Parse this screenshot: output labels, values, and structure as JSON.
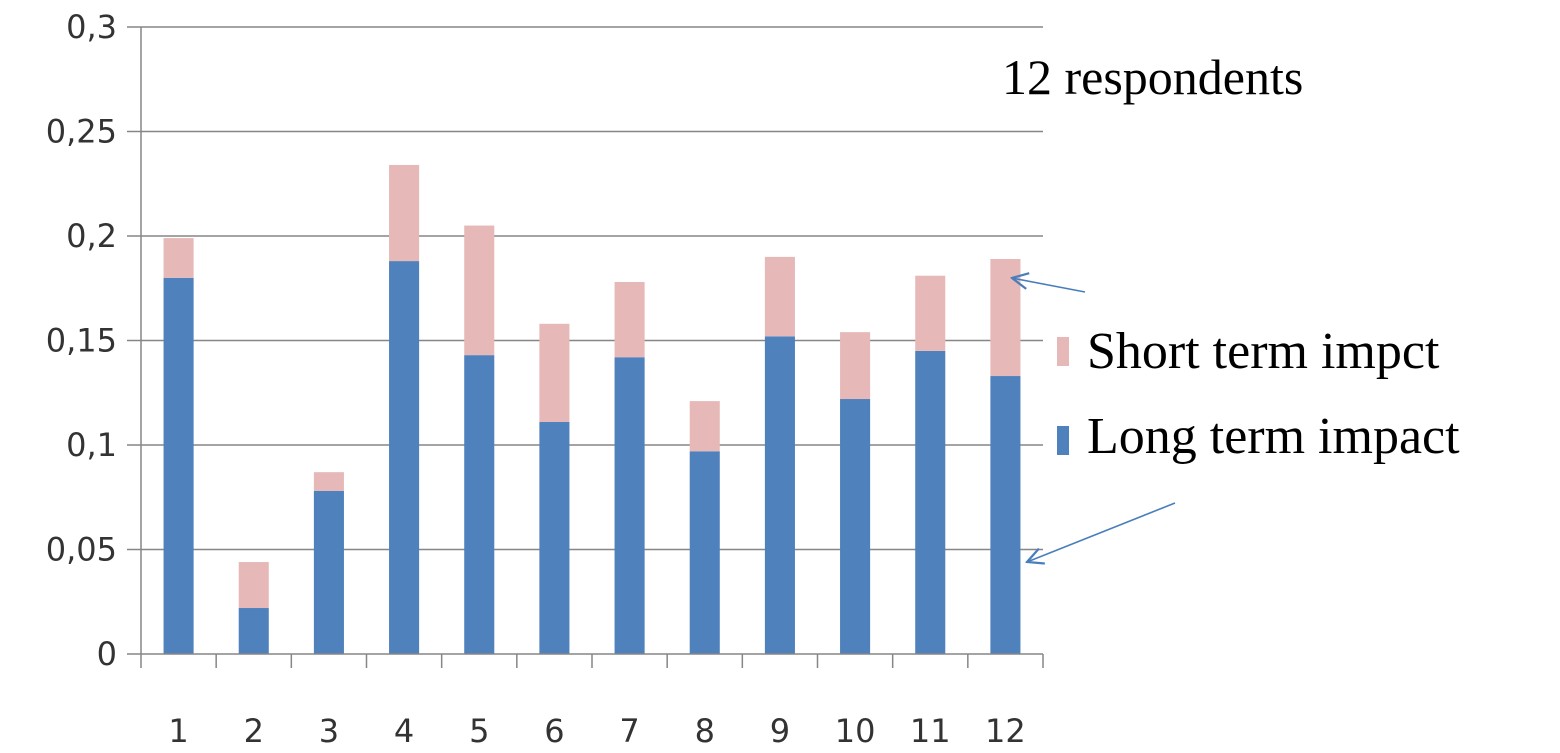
{
  "chart_data": {
    "type": "bar",
    "stacked": true,
    "categories": [
      "1",
      "2",
      "3",
      "4",
      "5",
      "6",
      "7",
      "8",
      "9",
      "10",
      "11",
      "12"
    ],
    "series": [
      {
        "name": "Long term impact",
        "color": "#4f81bd",
        "values": [
          0.18,
          0.022,
          0.078,
          0.188,
          0.143,
          0.111,
          0.142,
          0.097,
          0.152,
          0.122,
          0.145,
          0.133
        ]
      },
      {
        "name": "Short term impct",
        "color": "#e6b9b8",
        "values": [
          0.019,
          0.022,
          0.009,
          0.046,
          0.062,
          0.047,
          0.036,
          0.024,
          0.038,
          0.032,
          0.036,
          0.056
        ]
      }
    ],
    "ylim": [
      0,
      0.3
    ],
    "yticks": [
      {
        "value": 0,
        "label": "0"
      },
      {
        "value": 0.05,
        "label": "0,05"
      },
      {
        "value": 0.1,
        "label": "0,1"
      },
      {
        "value": 0.15,
        "label": "0,15"
      },
      {
        "value": 0.2,
        "label": "0,2"
      },
      {
        "value": 0.25,
        "label": "0,25"
      },
      {
        "value": 0.3,
        "label": "0,3"
      }
    ],
    "grid": true,
    "legend_position": "right",
    "annotation": "12 respondents"
  }
}
